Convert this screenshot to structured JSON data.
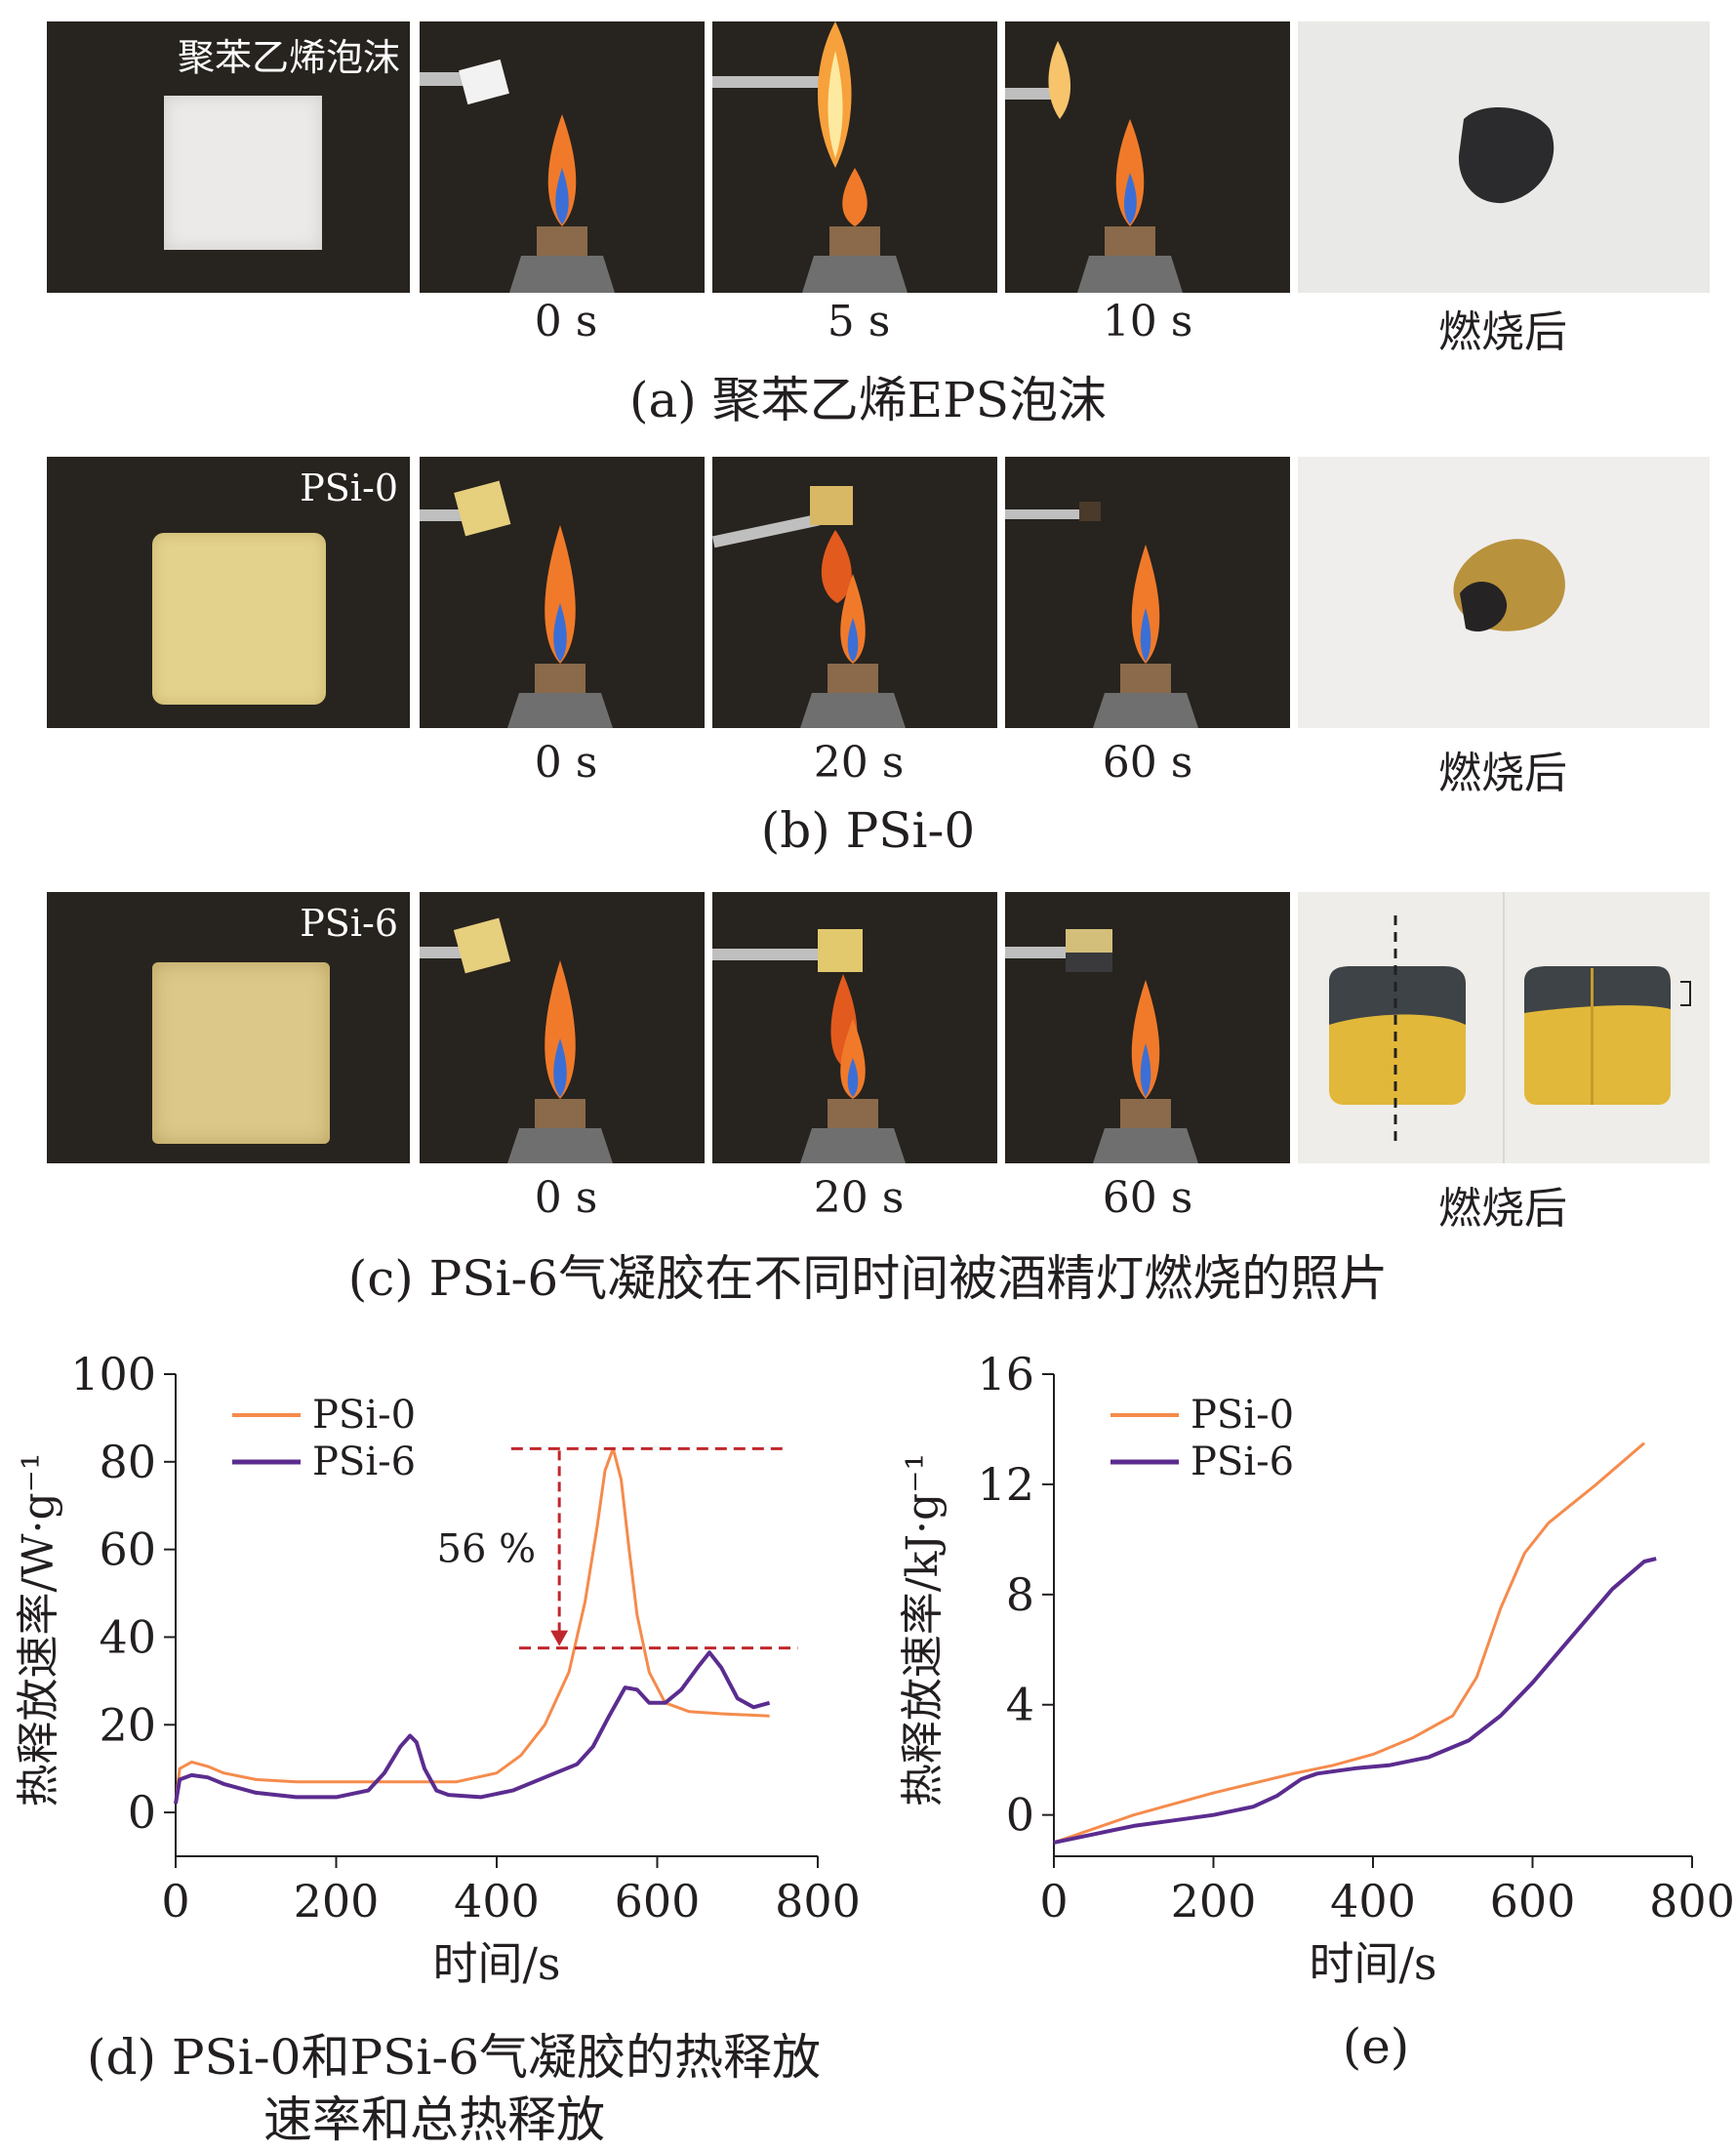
{
  "rows": [
    {
      "id": "a",
      "inset_label": "聚苯乙烯泡沫",
      "times": [
        "0 s",
        "5 s",
        "10 s"
      ],
      "after": "燃烧后",
      "caption": "(a) 聚苯乙烯EPS泡沫",
      "sample_color": "#e9e8e6"
    },
    {
      "id": "b",
      "inset_label": "PSi-0",
      "times": [
        "0 s",
        "20 s",
        "60 s"
      ],
      "after": "燃烧后",
      "caption": "(b) PSi-0",
      "sample_color": "#e3d28c"
    },
    {
      "id": "c",
      "inset_label": "PSi-6",
      "times": [
        "0 s",
        "20 s",
        "60 s"
      ],
      "after": "燃烧后",
      "caption": "(c) PSi-6气凝胶在不同时间被酒精灯燃烧的照片",
      "sample_color": "#dcc98a"
    }
  ],
  "chart_d_caption": [
    "(d) PSi-0和PSi-6气凝胶的热释放",
    "速率和总热释放"
  ],
  "chart_e_caption": "(e)",
  "chart_data": [
    {
      "type": "line",
      "xlabel": "时间/s",
      "ylabel": "热释放速率/W·g⁻¹",
      "xlim": [
        0,
        800
      ],
      "ylim": [
        -10,
        100
      ],
      "xticks": [
        0,
        200,
        400,
        600,
        800
      ],
      "yticks": [
        0,
        20,
        40,
        60,
        80,
        100
      ],
      "legend_position": "top-left",
      "annotation": "56 %",
      "annotation_levels": [
        83,
        37.5
      ],
      "series": [
        {
          "name": "PSi-0",
          "color": "#f58b4c",
          "x": [
            0,
            5,
            20,
            40,
            60,
            100,
            150,
            200,
            250,
            300,
            350,
            400,
            430,
            460,
            490,
            510,
            525,
            535,
            545,
            555,
            565,
            575,
            590,
            610,
            640,
            680,
            740
          ],
          "y": [
            2,
            10,
            11.5,
            10.5,
            9,
            7.5,
            7,
            7,
            7,
            7,
            7,
            9,
            13,
            20,
            32,
            48,
            65,
            78,
            83,
            76,
            60,
            45,
            32,
            25,
            23,
            22.5,
            22
          ]
        },
        {
          "name": "PSi-6",
          "color": "#5b2c8f",
          "x": [
            0,
            5,
            20,
            40,
            60,
            100,
            150,
            200,
            240,
            260,
            280,
            292,
            300,
            310,
            325,
            340,
            380,
            420,
            460,
            500,
            520,
            540,
            560,
            575,
            590,
            610,
            630,
            650,
            665,
            680,
            700,
            720,
            740
          ],
          "y": [
            2,
            7.5,
            8.5,
            8,
            6.5,
            4.5,
            3.5,
            3.5,
            5,
            9,
            15,
            17.5,
            16,
            10,
            5,
            4,
            3.5,
            5,
            8,
            11,
            15,
            22,
            28.5,
            28,
            25,
            25,
            28,
            33,
            36.5,
            33,
            26,
            24,
            25
          ]
        }
      ]
    },
    {
      "type": "line",
      "xlabel": "时间/s",
      "ylabel": "热释放速率/kJ·g⁻¹",
      "xlim": [
        0,
        800
      ],
      "ylim": [
        -1.5,
        16
      ],
      "xticks": [
        0,
        200,
        400,
        600,
        800
      ],
      "yticks": [
        0,
        4,
        8,
        12,
        16
      ],
      "legend_position": "top-left",
      "series": [
        {
          "name": "PSi-0",
          "color": "#f58b4c",
          "x": [
            0,
            50,
            100,
            200,
            300,
            350,
            400,
            450,
            500,
            530,
            560,
            590,
            620,
            680,
            740
          ],
          "y": [
            -1,
            -0.5,
            0,
            0.8,
            1.5,
            1.8,
            2.2,
            2.8,
            3.6,
            5,
            7.5,
            9.5,
            10.6,
            12,
            13.5
          ]
        },
        {
          "name": "PSi-6",
          "color": "#5b2c8f",
          "x": [
            0,
            50,
            100,
            150,
            200,
            250,
            280,
            310,
            330,
            380,
            420,
            470,
            520,
            560,
            600,
            650,
            700,
            740,
            755
          ],
          "y": [
            -1,
            -0.7,
            -0.4,
            -0.2,
            0,
            0.3,
            0.7,
            1.3,
            1.5,
            1.7,
            1.8,
            2.1,
            2.7,
            3.6,
            4.8,
            6.5,
            8.2,
            9.2,
            9.3
          ]
        }
      ]
    }
  ]
}
